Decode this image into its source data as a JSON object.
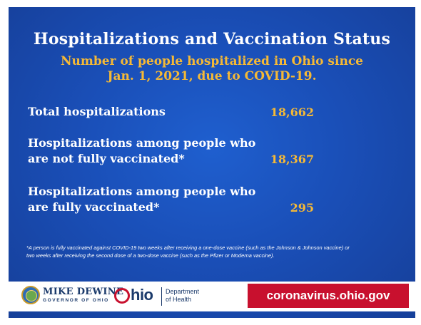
{
  "title": "Hospitalizations and Vaccination Status",
  "subtitle_line1": "Number of people hospitalized in Ohio since",
  "subtitle_line2": "Jan. 1, 2021, due to COVID-19.",
  "rows": [
    {
      "label_line1": "Total hospitalizations",
      "label_line2": "",
      "value": "18,662"
    },
    {
      "label_line1": "Hospitalizations among people who",
      "label_line2": "are not fully vaccinated*",
      "value": "18,367"
    },
    {
      "label_line1": "Hospitalizations among people who",
      "label_line2": "are fully vaccinated*",
      "value": "295"
    }
  ],
  "footnote_line1": "*A person is fully vaccinated against COVID-19 two weeks after receiving a one-dose vaccine (such as the Johnson & Johnson vaccine) or",
  "footnote_line2": "two weeks after receiving the second dose of a two-dose vaccine (such as the Pfizer or Moderna vaccine).",
  "footer": {
    "governor_name": "MIKE DEWINE",
    "governor_title": "GOVERNOR OF OHIO",
    "ohio_logo_text": "hio",
    "dept_line1": "Department",
    "dept_line2": "of Health",
    "url": "coronavirus.ohio.gov"
  },
  "colors": {
    "background": "#1a4fb8",
    "accent": "#f5b936",
    "url_box": "#c8102e"
  }
}
